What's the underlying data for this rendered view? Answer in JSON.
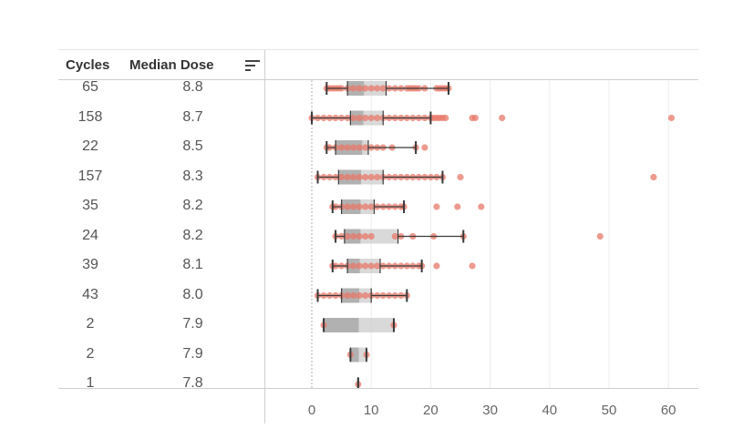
{
  "table": {
    "header_cycles": "Cycles",
    "header_dose": "Median Dose",
    "sort_icon": "sort-descending-icon"
  },
  "colors": {
    "outlier_dot": "#e8786a",
    "box_dark": "#9e9e9e",
    "box_light": "#cfcfcf",
    "whisker": "#3a3a3a",
    "grid": "#ececec",
    "zero_line": "#b0b0b0"
  },
  "chart_data": {
    "type": "boxplot",
    "orientation": "horizontal",
    "x_ticks": [
      0,
      10,
      20,
      30,
      40,
      50,
      60
    ],
    "xlim": [
      -7.5,
      64
    ],
    "rows": [
      {
        "cycles": "65",
        "median_dose": "8.8",
        "whisker_low": 2.5,
        "q1": 6,
        "median": 8.8,
        "q3": 12.5,
        "whisker_high": 23,
        "points": [
          2.5,
          3,
          3.5,
          4,
          4.5,
          5,
          6,
          7,
          8,
          9,
          10,
          11,
          12,
          13,
          14,
          15,
          16,
          16.5,
          17,
          17.5,
          18,
          19,
          21,
          21.5,
          22,
          22.5,
          23
        ]
      },
      {
        "cycles": "158",
        "median_dose": "8.7",
        "whisker_low": 0,
        "q1": 6.5,
        "median": 8.7,
        "q3": 12,
        "whisker_high": 20,
        "points": [
          0,
          1,
          2,
          3,
          4,
          5,
          6,
          7,
          8,
          9,
          10,
          11,
          12,
          13,
          14,
          15,
          16,
          17,
          18,
          19,
          20,
          20.5,
          21,
          21.5,
          22,
          22.5,
          27,
          27.5,
          32,
          60.5
        ]
      },
      {
        "cycles": "22",
        "median_dose": "8.5",
        "whisker_low": 2.5,
        "q1": 4,
        "median": 8.5,
        "q3": 9.5,
        "whisker_high": 17.5,
        "points": [
          2.5,
          3,
          4,
          5,
          6,
          7,
          8,
          9,
          10,
          11,
          12,
          13.5,
          17.5,
          19
        ]
      },
      {
        "cycles": "157",
        "median_dose": "8.3",
        "whisker_low": 1,
        "q1": 4.5,
        "median": 8.3,
        "q3": 12,
        "whisker_high": 22,
        "points": [
          1,
          2,
          3,
          4,
          5,
          6,
          7,
          8,
          9,
          10,
          11,
          12,
          13,
          14,
          15,
          16,
          17,
          18,
          19,
          20,
          21,
          22,
          25,
          57.5
        ]
      },
      {
        "cycles": "35",
        "median_dose": "8.2",
        "whisker_low": 3.5,
        "q1": 5,
        "median": 8.2,
        "q3": 10.5,
        "whisker_high": 15.5,
        "points": [
          3.5,
          4,
          5,
          6,
          7,
          8,
          9,
          10,
          11,
          12,
          13,
          14,
          15,
          15.5,
          21,
          24.5,
          28.5
        ]
      },
      {
        "cycles": "24",
        "median_dose": "8.2",
        "whisker_low": 4,
        "q1": 5.5,
        "median": 8.2,
        "q3": 14.5,
        "whisker_high": 25.5,
        "points": [
          4,
          5,
          6,
          7,
          8,
          9,
          10,
          14,
          15,
          17,
          20.5,
          25.5,
          48.5
        ]
      },
      {
        "cycles": "39",
        "median_dose": "8.1",
        "whisker_low": 3.5,
        "q1": 6,
        "median": 8.1,
        "q3": 11.5,
        "whisker_high": 18.5,
        "points": [
          3.5,
          4,
          5,
          6,
          7,
          8,
          9,
          10,
          11,
          12,
          13,
          14,
          15,
          16,
          17,
          18,
          18.5,
          21,
          27
        ]
      },
      {
        "cycles": "43",
        "median_dose": "8.0",
        "whisker_low": 1,
        "q1": 5,
        "median": 8,
        "q3": 10,
        "whisker_high": 16,
        "points": [
          1,
          2,
          3,
          4,
          5,
          6,
          7,
          8,
          9,
          10,
          11,
          12,
          13,
          14,
          15,
          16
        ]
      },
      {
        "cycles": "2",
        "median_dose": "7.9",
        "whisker_low": 2,
        "q1": 2,
        "median": 7.9,
        "q3": 13.8,
        "whisker_high": 13.8,
        "points": [
          2,
          13.8
        ]
      },
      {
        "cycles": "2",
        "median_dose": "7.9",
        "whisker_low": 6.5,
        "q1": 6.5,
        "median": 7.9,
        "q3": 9.2,
        "whisker_high": 9.2,
        "points": [
          6.5,
          9.2
        ]
      },
      {
        "cycles": "1",
        "median_dose": "7.8",
        "whisker_low": 7.8,
        "q1": 7.8,
        "median": 7.8,
        "q3": 7.8,
        "whisker_high": 7.8,
        "points": [
          7.8
        ]
      }
    ]
  }
}
